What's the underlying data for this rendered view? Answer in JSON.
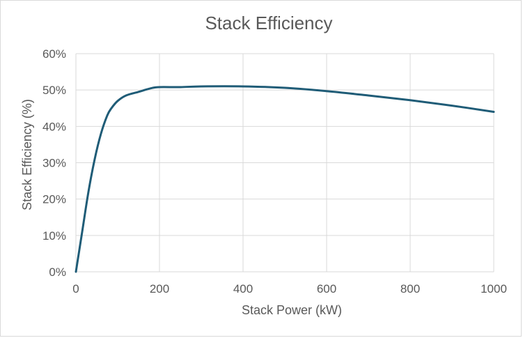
{
  "chart_data": {
    "type": "line",
    "title": "Stack Efficiency",
    "xlabel": "Stack Power (kW)",
    "ylabel": "Stack Efficiency (%)",
    "xlim": [
      0,
      1000
    ],
    "ylim": [
      0,
      60
    ],
    "x_ticks": [
      0,
      200,
      400,
      600,
      800,
      1000
    ],
    "x_tick_labels": [
      "0",
      "200",
      "400",
      "600",
      "800",
      "1000"
    ],
    "y_ticks": [
      0,
      10,
      20,
      30,
      40,
      50,
      60
    ],
    "y_tick_labels": [
      "0%",
      "10%",
      "20%",
      "30%",
      "40%",
      "50%",
      "60%"
    ],
    "grid": true,
    "legend": "none",
    "color": "#1f5c77",
    "series": [
      {
        "x": [
          0,
          15,
          30,
          45,
          60,
          75,
          85,
          100,
          120,
          150,
          180,
          200,
          250,
          300,
          400,
          500,
          600,
          700,
          800,
          900,
          1000
        ],
        "y": [
          0,
          11,
          22,
          31,
          38,
          43,
          45,
          47,
          48.5,
          49.5,
          50.5,
          50.8,
          50.8,
          51,
          51,
          50.6,
          49.7,
          48.5,
          47.2,
          45.7,
          44
        ]
      }
    ]
  }
}
